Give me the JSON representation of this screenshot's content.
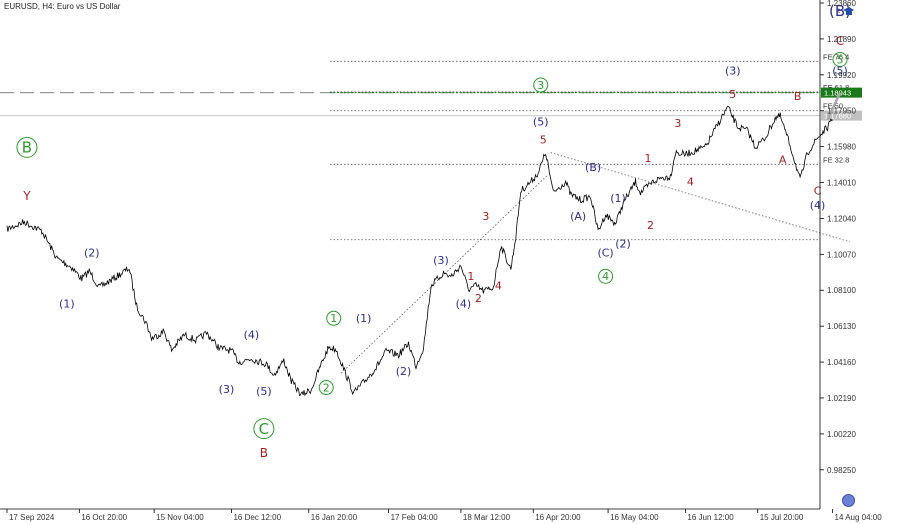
{
  "title": "EURUSD, H4:  Euro vs US Dollar",
  "corner_label": "t",
  "colors": {
    "price_line": "#000000",
    "current_tag": "#c0c0c0",
    "fe618_tag": "#1a7a1a",
    "wave_blue": "#2b2f8c",
    "wave_red": "#a81e1e",
    "wave_green": "#2e9a2e",
    "projection": "#a8a8a8"
  },
  "chart_data": {
    "type": "line",
    "symbol": "EURUSD",
    "timeframe": "H4",
    "ylim": [
      0.9725,
      1.2386
    ],
    "yticks": [
      "1.23860",
      "1.21890",
      "1.19920",
      "1.17950",
      "1.15980",
      "1.14010",
      "1.12040",
      "1.10070",
      "1.08100",
      "1.06130",
      "1.04160",
      "1.02190",
      "1.00220",
      "0.98250"
    ],
    "xticks": [
      "17 Sep 2024",
      "16 Oct 20:00",
      "15 Nov 04:00",
      "16 Dec 12:00",
      "16 Jan 20:00",
      "17 Feb 04:00",
      "18 Mar 12:00",
      "16 Apr 20:00",
      "16 May 04:00",
      "16 Jun 12:00",
      "15 Jul 20:00",
      "14 Aug 04:00"
    ],
    "price_tags": [
      {
        "label": "1.18943",
        "value": 1.18943,
        "style": "green"
      },
      {
        "label": "1.17680",
        "value": 1.1768,
        "style": "gray"
      }
    ],
    "fib_levels": [
      {
        "label": "FE 76.4",
        "value": 1.2066
      },
      {
        "label": "FE 61.8",
        "value": 1.1898
      },
      {
        "label": "FE 50",
        "value": 1.1795
      },
      {
        "label": "FE 32.8",
        "value": 1.1501
      },
      {
        "label": "",
        "value": 1.1087
      }
    ],
    "series": [
      {
        "x": [
          "2024-09-17",
          "2024-09-24",
          "2024-10-01",
          "2024-10-07",
          "2024-10-13",
          "2024-10-17",
          "2024-10-20",
          "2024-10-24",
          "2024-10-31",
          "2024-11-05",
          "2024-11-08",
          "2024-11-12",
          "2024-11-14",
          "2024-11-19",
          "2024-11-22",
          "2024-11-27",
          "2024-12-02",
          "2024-12-06",
          "2024-12-11",
          "2024-12-16",
          "2024-12-19",
          "2024-12-24",
          "2024-12-30",
          "2025-01-02",
          "2025-01-06",
          "2025-01-09",
          "2025-01-13",
          "2025-01-17",
          "2025-01-21",
          "2025-01-24",
          "2025-01-27",
          "2025-01-31",
          "2025-02-03",
          "2025-02-07",
          "2025-02-12",
          "2025-02-16",
          "2025-02-21",
          "2025-02-25",
          "2025-02-28",
          "2025-03-03",
          "2025-03-06",
          "2025-03-11",
          "2025-03-14",
          "2025-03-18",
          "2025-03-21",
          "2025-03-24",
          "2025-03-27",
          "2025-03-31",
          "2025-04-03",
          "2025-04-07",
          "2025-04-09",
          "2025-04-11",
          "2025-04-15",
          "2025-04-18",
          "2025-04-21",
          "2025-04-24",
          "2025-04-29",
          "2025-05-01",
          "2025-05-05",
          "2025-05-09",
          "2025-05-12",
          "2025-05-15",
          "2025-05-19",
          "2025-05-22",
          "2025-05-27",
          "2025-05-29",
          "2025-06-03",
          "2025-06-06",
          "2025-06-10",
          "2025-06-12",
          "2025-06-16",
          "2025-06-20",
          "2025-06-24",
          "2025-06-30",
          "2025-07-03",
          "2025-07-07",
          "2025-07-11",
          "2025-07-14",
          "2025-07-18",
          "2025-07-22",
          "2025-07-24",
          "2025-07-28",
          "2025-08-01",
          "2025-08-04",
          "2025-08-08",
          "2025-08-12",
          "2025-08-14"
        ],
        "y": [
          1.1145,
          1.1185,
          1.1135,
          1.0985,
          1.0935,
          1.0872,
          1.0915,
          1.0825,
          1.0885,
          1.0932,
          1.0722,
          1.0625,
          1.0545,
          1.0585,
          1.0482,
          1.0565,
          1.0535,
          1.0575,
          1.0495,
          1.0478,
          1.0415,
          1.0435,
          1.0405,
          1.0345,
          1.0425,
          1.0312,
          1.0235,
          1.0265,
          1.0405,
          1.0498,
          1.0485,
          1.0345,
          1.0245,
          1.0305,
          1.0385,
          1.0475,
          1.0455,
          1.0518,
          1.0395,
          1.0495,
          1.0835,
          1.0905,
          1.0885,
          1.0945,
          1.0815,
          1.0835,
          1.0805,
          1.0825,
          1.1055,
          1.0925,
          1.1105,
          1.1355,
          1.1405,
          1.1455,
          1.1565,
          1.1345,
          1.1405,
          1.1335,
          1.1305,
          1.1325,
          1.1135,
          1.1225,
          1.1175,
          1.1285,
          1.1405,
          1.1345,
          1.1405,
          1.1425,
          1.1435,
          1.1565,
          1.1555,
          1.1575,
          1.1595,
          1.1745,
          1.1815,
          1.1705,
          1.1685,
          1.1595,
          1.1645,
          1.1755,
          1.1765,
          1.1605,
          1.1415,
          1.1565,
          1.1645,
          1.1705,
          1.1745
        ]
      }
    ],
    "projection": {
      "x": [
        "2025-08-12",
        "2025-08-17"
      ],
      "y": [
        1.1745,
        1.1894
      ]
    },
    "trendlines": [
      {
        "x": [
          "2025-01-29",
          "2025-04-22"
        ],
        "y": [
          1.0355,
          1.1445
        ],
        "style": "dotted"
      },
      {
        "x": [
          "2025-04-23",
          "2025-08-21"
        ],
        "y": [
          1.1565,
          1.1075
        ],
        "style": "dotted"
      }
    ],
    "wave_labels": [
      {
        "text": "B",
        "x": "2024-09-25",
        "y": 1.1565,
        "color": "green",
        "shape": "circle",
        "size": "big"
      },
      {
        "text": "Y",
        "x": "2024-09-25",
        "y": 1.1305,
        "color": "red",
        "size": "med"
      },
      {
        "text": "(2)",
        "x": "2024-10-21",
        "y": 1.0995,
        "color": "blue"
      },
      {
        "text": "(1)",
        "x": "2024-10-11",
        "y": 1.0715,
        "color": "blue"
      },
      {
        "text": "(4)",
        "x": "2024-12-24",
        "y": 1.0545,
        "color": "blue"
      },
      {
        "text": "(3)",
        "x": "2024-12-14",
        "y": 1.0245,
        "color": "blue"
      },
      {
        "text": "(5)",
        "x": "2024-12-29",
        "y": 1.0235,
        "color": "blue"
      },
      {
        "text": "C",
        "x": "2024-12-29",
        "y": 1.0022,
        "color": "green",
        "shape": "circle",
        "size": "big"
      },
      {
        "text": "B",
        "x": "2024-12-29",
        "y": 0.9895,
        "color": "red",
        "size": "med"
      },
      {
        "text": "1",
        "x": "2025-01-26",
        "y": 1.0635,
        "color": "green",
        "shape": "circle"
      },
      {
        "text": "2",
        "x": "2025-01-23",
        "y": 1.0255,
        "color": "green",
        "shape": "circle"
      },
      {
        "text": "(1)",
        "x": "2025-02-07",
        "y": 1.0635,
        "color": "blue"
      },
      {
        "text": "(2)",
        "x": "2025-02-23",
        "y": 1.0345,
        "color": "blue"
      },
      {
        "text": "(3)",
        "x": "2025-03-10",
        "y": 1.0955,
        "color": "blue"
      },
      {
        "text": "(4)",
        "x": "2025-03-19",
        "y": 1.0715,
        "color": "blue"
      },
      {
        "text": "1",
        "x": "2025-03-22",
        "y": 1.0865,
        "color": "red"
      },
      {
        "text": "2",
        "x": "2025-03-25",
        "y": 1.0745,
        "color": "red"
      },
      {
        "text": "3",
        "x": "2025-03-28",
        "y": 1.1195,
        "color": "red"
      },
      {
        "text": "4",
        "x": "2025-04-02",
        "y": 1.0815,
        "color": "red"
      },
      {
        "text": "3",
        "x": "2025-04-19",
        "y": 1.1915,
        "color": "green",
        "shape": "circle"
      },
      {
        "text": "(5)",
        "x": "2025-04-19",
        "y": 1.1715,
        "color": "blue"
      },
      {
        "text": "5",
        "x": "2025-04-20",
        "y": 1.1615,
        "color": "red"
      },
      {
        "text": "(B)",
        "x": "2025-05-10",
        "y": 1.1465,
        "color": "blue"
      },
      {
        "text": "(A)",
        "x": "2025-05-04",
        "y": 1.1195,
        "color": "blue"
      },
      {
        "text": "(1)",
        "x": "2025-05-20",
        "y": 1.1295,
        "color": "blue"
      },
      {
        "text": "(2)",
        "x": "2025-05-22",
        "y": 1.1045,
        "color": "blue"
      },
      {
        "text": "(C)",
        "x": "2025-05-15",
        "y": 1.0995,
        "color": "blue"
      },
      {
        "text": "4",
        "x": "2025-05-15",
        "y": 1.0865,
        "color": "green",
        "shape": "circle"
      },
      {
        "text": "1",
        "x": "2025-06-01",
        "y": 1.1515,
        "color": "red"
      },
      {
        "text": "2",
        "x": "2025-06-02",
        "y": 1.1145,
        "color": "red"
      },
      {
        "text": "3",
        "x": "2025-06-13",
        "y": 1.1705,
        "color": "red"
      },
      {
        "text": "4",
        "x": "2025-06-18",
        "y": 1.1385,
        "color": "red"
      },
      {
        "text": "(3)",
        "x": "2025-07-05",
        "y": 1.1995,
        "color": "blue"
      },
      {
        "text": "5",
        "x": "2025-07-05",
        "y": 1.1865,
        "color": "red"
      },
      {
        "text": "B",
        "x": "2025-07-31",
        "y": 1.1855,
        "color": "red"
      },
      {
        "text": "A",
        "x": "2025-07-25",
        "y": 1.1505,
        "color": "red"
      },
      {
        "text": "C",
        "x": "2025-08-08",
        "y": 1.1335,
        "color": "red"
      },
      {
        "text": "(4)",
        "x": "2025-08-08",
        "y": 1.1255,
        "color": "blue"
      },
      {
        "text": "(B)",
        "x": "2025-08-17",
        "y": 1.2315,
        "color": "blue",
        "size": "big"
      },
      {
        "text": "C",
        "x": "2025-08-17",
        "y": 1.2155,
        "color": "red",
        "size": "med"
      },
      {
        "text": "5",
        "x": "2025-08-17",
        "y": 1.2055,
        "color": "green",
        "shape": "circle"
      },
      {
        "text": "(5)",
        "x": "2025-08-17",
        "y": 1.1995,
        "color": "blue"
      }
    ]
  }
}
